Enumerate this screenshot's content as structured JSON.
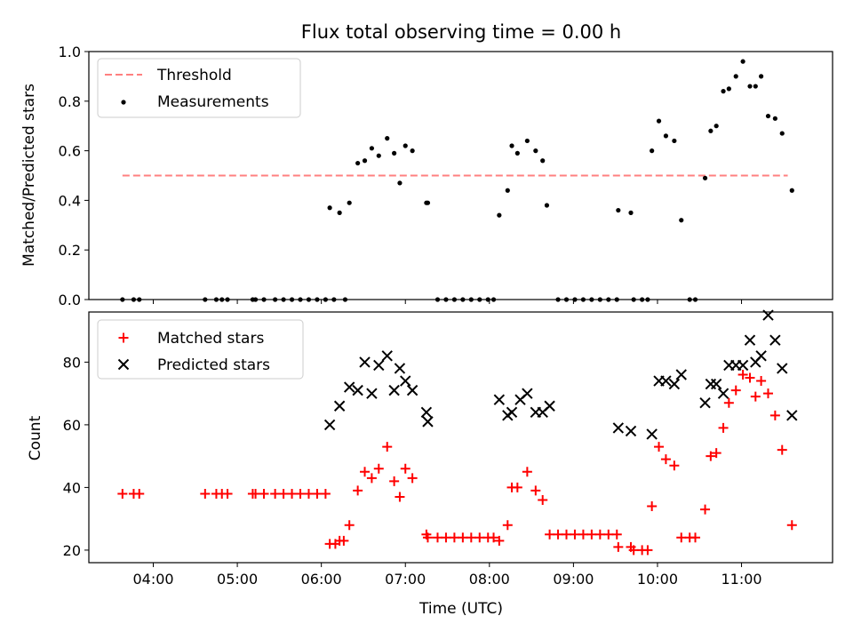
{
  "chart_data": [
    {
      "type": "scatter",
      "title": "Flux total observing time = 0.00 h",
      "ylabel": "Matched/Predicted stars",
      "xlim": [
        "03:14",
        "12:05"
      ],
      "ylim": [
        0,
        1
      ],
      "yticks": [
        "0.0",
        "0.2",
        "0.4",
        "0.6",
        "0.8",
        "1.0"
      ],
      "legend_position": "top-left",
      "threshold": {
        "name": "Threshold",
        "value": 0.5,
        "x_range": [
          "03:38",
          "11:33"
        ],
        "color": "#ff8080"
      },
      "series": [
        {
          "name": "Measurements",
          "color": "#000000",
          "points": [
            [
              "03:38",
              0
            ],
            [
              "03:46",
              0
            ],
            [
              "03:50",
              0
            ],
            [
              "04:37",
              0
            ],
            [
              "04:45",
              0
            ],
            [
              "04:49",
              0
            ],
            [
              "04:53",
              0
            ],
            [
              "05:11",
              0
            ],
            [
              "05:13",
              0
            ],
            [
              "05:19",
              0
            ],
            [
              "05:27",
              0
            ],
            [
              "05:33",
              0
            ],
            [
              "05:39",
              0
            ],
            [
              "05:45",
              0
            ],
            [
              "05:51",
              0
            ],
            [
              "05:57",
              0
            ],
            [
              "06:03",
              0
            ],
            [
              "06:09",
              0
            ],
            [
              "06:17",
              0
            ],
            [
              "06:06",
              0.37
            ],
            [
              "06:13",
              0.35
            ],
            [
              "06:20",
              0.39
            ],
            [
              "06:26",
              0.55
            ],
            [
              "06:31",
              0.56
            ],
            [
              "06:36",
              0.61
            ],
            [
              "06:41",
              0.58
            ],
            [
              "06:47",
              0.65
            ],
            [
              "06:52",
              0.59
            ],
            [
              "06:56",
              0.47
            ],
            [
              "07:00",
              0.62
            ],
            [
              "07:05",
              0.6
            ],
            [
              "07:15",
              0.39
            ],
            [
              "07:16",
              0.39
            ],
            [
              "07:23",
              0
            ],
            [
              "07:29",
              0
            ],
            [
              "07:35",
              0
            ],
            [
              "07:41",
              0
            ],
            [
              "07:47",
              0
            ],
            [
              "07:53",
              0
            ],
            [
              "07:59",
              0
            ],
            [
              "08:03",
              0
            ],
            [
              "08:07",
              0.34
            ],
            [
              "08:13",
              0.44
            ],
            [
              "08:16",
              0.62
            ],
            [
              "08:20",
              0.59
            ],
            [
              "08:27",
              0.64
            ],
            [
              "08:33",
              0.6
            ],
            [
              "08:38",
              0.56
            ],
            [
              "08:41",
              0.38
            ],
            [
              "08:49",
              0
            ],
            [
              "08:55",
              0
            ],
            [
              "09:01",
              0
            ],
            [
              "09:07",
              0
            ],
            [
              "09:13",
              0
            ],
            [
              "09:19",
              0
            ],
            [
              "09:25",
              0
            ],
            [
              "09:31",
              0
            ],
            [
              "09:32",
              0.36
            ],
            [
              "09:41",
              0.35
            ],
            [
              "09:43",
              0
            ],
            [
              "09:49",
              0
            ],
            [
              "09:53",
              0
            ],
            [
              "09:56",
              0.6
            ],
            [
              "10:01",
              0.72
            ],
            [
              "10:06",
              0.66
            ],
            [
              "10:12",
              0.64
            ],
            [
              "10:17",
              0.32
            ],
            [
              "10:23",
              0
            ],
            [
              "10:27",
              0
            ],
            [
              "10:34",
              0.49
            ],
            [
              "10:38",
              0.68
            ],
            [
              "10:42",
              0.7
            ],
            [
              "10:47",
              0.84
            ],
            [
              "10:51",
              0.85
            ],
            [
              "10:56",
              0.9
            ],
            [
              "11:01",
              0.96
            ],
            [
              "11:06",
              0.86
            ],
            [
              "11:10",
              0.86
            ],
            [
              "11:14",
              0.9
            ],
            [
              "11:19",
              0.74
            ],
            [
              "11:24",
              0.73
            ],
            [
              "11:29",
              0.67
            ],
            [
              "11:36",
              0.44
            ]
          ]
        }
      ]
    },
    {
      "type": "scatter",
      "xlabel": "Time (UTC)",
      "ylabel": "Count",
      "xlim": [
        "03:14",
        "12:05"
      ],
      "ylim": [
        16,
        96
      ],
      "yticks": [
        "20",
        "40",
        "60",
        "80"
      ],
      "xticks": [
        "04:00",
        "05:00",
        "06:00",
        "07:00",
        "08:00",
        "09:00",
        "10:00",
        "11:00"
      ],
      "legend_position": "top-left",
      "series": [
        {
          "name": "Matched stars",
          "marker": "plus",
          "color": "#ff0000",
          "points": [
            [
              "03:38",
              38
            ],
            [
              "03:46",
              38
            ],
            [
              "03:50",
              38
            ],
            [
              "04:37",
              38
            ],
            [
              "04:45",
              38
            ],
            [
              "04:49",
              38
            ],
            [
              "04:53",
              38
            ],
            [
              "05:11",
              38
            ],
            [
              "05:13",
              38
            ],
            [
              "05:19",
              38
            ],
            [
              "05:27",
              38
            ],
            [
              "05:33",
              38
            ],
            [
              "05:39",
              38
            ],
            [
              "05:45",
              38
            ],
            [
              "05:51",
              38
            ],
            [
              "05:57",
              38
            ],
            [
              "06:03",
              38
            ],
            [
              "06:06",
              22
            ],
            [
              "06:10",
              22
            ],
            [
              "06:13",
              23
            ],
            [
              "06:16",
              23
            ],
            [
              "06:20",
              28
            ],
            [
              "06:26",
              39
            ],
            [
              "06:31",
              45
            ],
            [
              "06:36",
              43
            ],
            [
              "06:41",
              46
            ],
            [
              "06:47",
              53
            ],
            [
              "06:52",
              42
            ],
            [
              "06:56",
              37
            ],
            [
              "07:00",
              46
            ],
            [
              "07:05",
              43
            ],
            [
              "07:15",
              25
            ],
            [
              "07:16",
              24
            ],
            [
              "07:23",
              24
            ],
            [
              "07:29",
              24
            ],
            [
              "07:35",
              24
            ],
            [
              "07:41",
              24
            ],
            [
              "07:47",
              24
            ],
            [
              "07:53",
              24
            ],
            [
              "07:59",
              24
            ],
            [
              "08:03",
              24
            ],
            [
              "08:07",
              23
            ],
            [
              "08:13",
              28
            ],
            [
              "08:16",
              40
            ],
            [
              "08:20",
              40
            ],
            [
              "08:27",
              45
            ],
            [
              "08:33",
              39
            ],
            [
              "08:38",
              36
            ],
            [
              "08:43",
              25
            ],
            [
              "08:49",
              25
            ],
            [
              "08:55",
              25
            ],
            [
              "09:01",
              25
            ],
            [
              "09:07",
              25
            ],
            [
              "09:13",
              25
            ],
            [
              "09:19",
              25
            ],
            [
              "09:25",
              25
            ],
            [
              "09:31",
              25
            ],
            [
              "09:32",
              21
            ],
            [
              "09:41",
              21
            ],
            [
              "09:43",
              20
            ],
            [
              "09:49",
              20
            ],
            [
              "09:53",
              20
            ],
            [
              "09:56",
              34
            ],
            [
              "10:01",
              53
            ],
            [
              "10:06",
              49
            ],
            [
              "10:12",
              47
            ],
            [
              "10:17",
              24
            ],
            [
              "10:23",
              24
            ],
            [
              "10:27",
              24
            ],
            [
              "10:34",
              33
            ],
            [
              "10:38",
              50
            ],
            [
              "10:42",
              51
            ],
            [
              "10:47",
              59
            ],
            [
              "10:51",
              67
            ],
            [
              "10:56",
              71
            ],
            [
              "11:01",
              76
            ],
            [
              "11:06",
              75
            ],
            [
              "11:10",
              69
            ],
            [
              "11:14",
              74
            ],
            [
              "11:19",
              70
            ],
            [
              "11:24",
              63
            ],
            [
              "11:29",
              52
            ],
            [
              "11:36",
              28
            ]
          ]
        },
        {
          "name": "Predicted stars",
          "marker": "x",
          "color": "#000000",
          "points": [
            [
              "06:06",
              60
            ],
            [
              "06:13",
              66
            ],
            [
              "06:20",
              72
            ],
            [
              "06:26",
              71
            ],
            [
              "06:31",
              80
            ],
            [
              "06:36",
              70
            ],
            [
              "06:41",
              79
            ],
            [
              "06:47",
              82
            ],
            [
              "06:52",
              71
            ],
            [
              "06:56",
              78
            ],
            [
              "07:00",
              74
            ],
            [
              "07:05",
              71
            ],
            [
              "07:15",
              64
            ],
            [
              "07:16",
              61
            ],
            [
              "08:07",
              68
            ],
            [
              "08:13",
              63
            ],
            [
              "08:16",
              64
            ],
            [
              "08:22",
              68
            ],
            [
              "08:27",
              70
            ],
            [
              "08:33",
              64
            ],
            [
              "08:38",
              64
            ],
            [
              "08:43",
              66
            ],
            [
              "09:32",
              59
            ],
            [
              "09:41",
              58
            ],
            [
              "09:56",
              57
            ],
            [
              "10:01",
              74
            ],
            [
              "10:06",
              74
            ],
            [
              "10:12",
              73
            ],
            [
              "10:17",
              76
            ],
            [
              "10:34",
              67
            ],
            [
              "10:38",
              73
            ],
            [
              "10:42",
              73
            ],
            [
              "10:47",
              70
            ],
            [
              "10:51",
              79
            ],
            [
              "10:56",
              79
            ],
            [
              "11:01",
              79
            ],
            [
              "11:06",
              87
            ],
            [
              "11:10",
              80
            ],
            [
              "11:14",
              82
            ],
            [
              "11:19",
              95
            ],
            [
              "11:24",
              87
            ],
            [
              "11:29",
              78
            ],
            [
              "11:36",
              63
            ]
          ]
        }
      ]
    }
  ]
}
